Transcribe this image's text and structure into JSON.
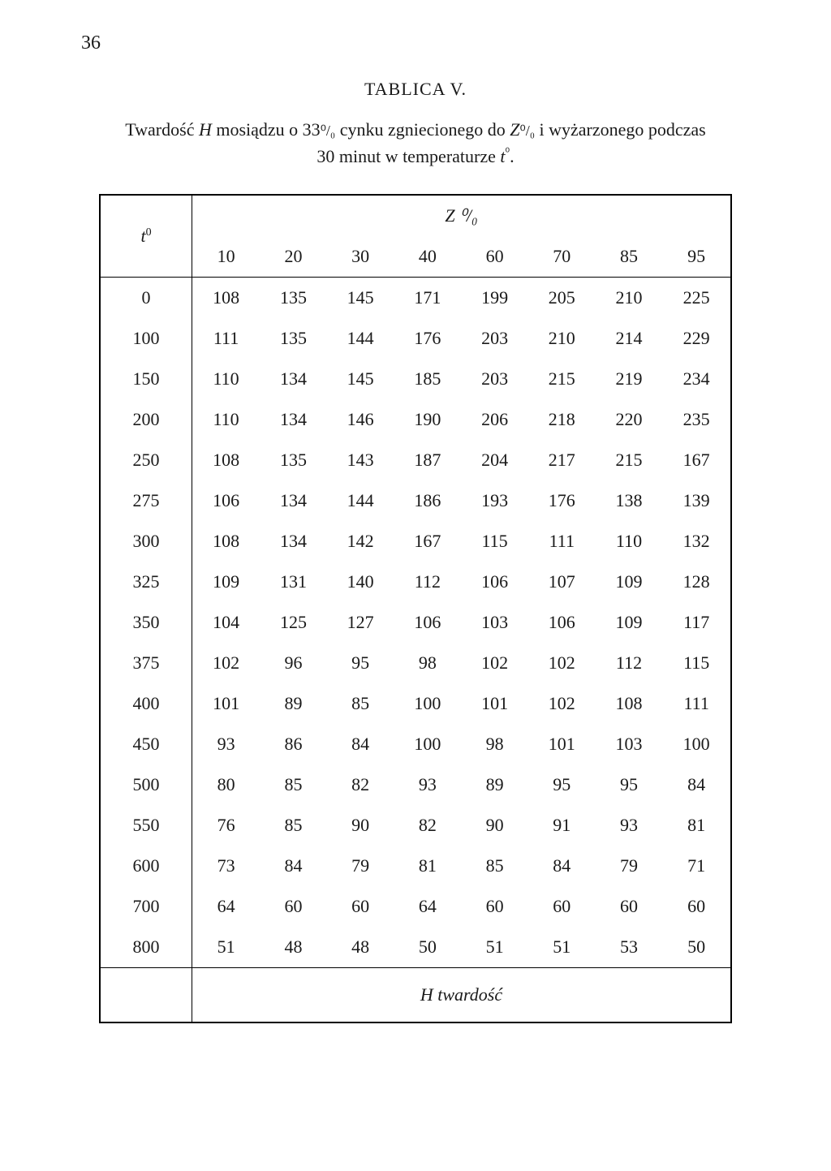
{
  "page_number": "36",
  "table_title": "TABLICA V.",
  "caption_line1_prefix": "Twardość ",
  "caption_H": "H",
  "caption_line1_mid": " mosiądzu o 33",
  "caption_percent1": "⁰/₀",
  "caption_line1_after": " cynku zgniecionego do ",
  "caption_Z": "Z",
  "caption_percent2": "⁰/₀",
  "caption_line1_end": " i wyżarzonego podczas",
  "caption_line2_prefix": "30 minut w temperaturze ",
  "caption_t": "t",
  "caption_super0": "⁰",
  "caption_line2_end": ".",
  "headers": {
    "t0_label": "t",
    "t0_super": "0",
    "z_label": "Z",
    "z_unit": " ⁰/₀",
    "cols": [
      "10",
      "20",
      "30",
      "40",
      "60",
      "70",
      "85",
      "95"
    ]
  },
  "rows": [
    {
      "t0": "0",
      "vals": [
        "108",
        "135",
        "145",
        "171",
        "199",
        "205",
        "210",
        "225"
      ]
    },
    {
      "t0": "100",
      "vals": [
        "111",
        "135",
        "144",
        "176",
        "203",
        "210",
        "214",
        "229"
      ]
    },
    {
      "t0": "150",
      "vals": [
        "110",
        "134",
        "145",
        "185",
        "203",
        "215",
        "219",
        "234"
      ]
    },
    {
      "t0": "200",
      "vals": [
        "110",
        "134",
        "146",
        "190",
        "206",
        "218",
        "220",
        "235"
      ]
    },
    {
      "t0": "250",
      "vals": [
        "108",
        "135",
        "143",
        "187",
        "204",
        "217",
        "215",
        "167"
      ]
    },
    {
      "t0": "275",
      "vals": [
        "106",
        "134",
        "144",
        "186",
        "193",
        "176",
        "138",
        "139"
      ]
    },
    {
      "t0": "300",
      "vals": [
        "108",
        "134",
        "142",
        "167",
        "115",
        "111",
        "110",
        "132"
      ]
    },
    {
      "t0": "325",
      "vals": [
        "109",
        "131",
        "140",
        "112",
        "106",
        "107",
        "109",
        "128"
      ]
    },
    {
      "t0": "350",
      "vals": [
        "104",
        "125",
        "127",
        "106",
        "103",
        "106",
        "109",
        "117"
      ]
    },
    {
      "t0": "375",
      "vals": [
        "102",
        "96",
        "95",
        "98",
        "102",
        "102",
        "112",
        "115"
      ]
    },
    {
      "t0": "400",
      "vals": [
        "101",
        "89",
        "85",
        "100",
        "101",
        "102",
        "108",
        "111"
      ]
    },
    {
      "t0": "450",
      "vals": [
        "93",
        "86",
        "84",
        "100",
        "98",
        "101",
        "103",
        "100"
      ]
    },
    {
      "t0": "500",
      "vals": [
        "80",
        "85",
        "82",
        "93",
        "89",
        "95",
        "95",
        "84"
      ]
    },
    {
      "t0": "550",
      "vals": [
        "76",
        "85",
        "90",
        "82",
        "90",
        "91",
        "93",
        "81"
      ]
    },
    {
      "t0": "600",
      "vals": [
        "73",
        "84",
        "79",
        "81",
        "85",
        "84",
        "79",
        "71"
      ]
    },
    {
      "t0": "700",
      "vals": [
        "64",
        "60",
        "60",
        "64",
        "60",
        "60",
        "60",
        "60"
      ]
    },
    {
      "t0": "800",
      "vals": [
        "51",
        "48",
        "48",
        "50",
        "51",
        "51",
        "53",
        "50"
      ]
    }
  ],
  "footer_H": "H",
  "footer_text": " twardość"
}
